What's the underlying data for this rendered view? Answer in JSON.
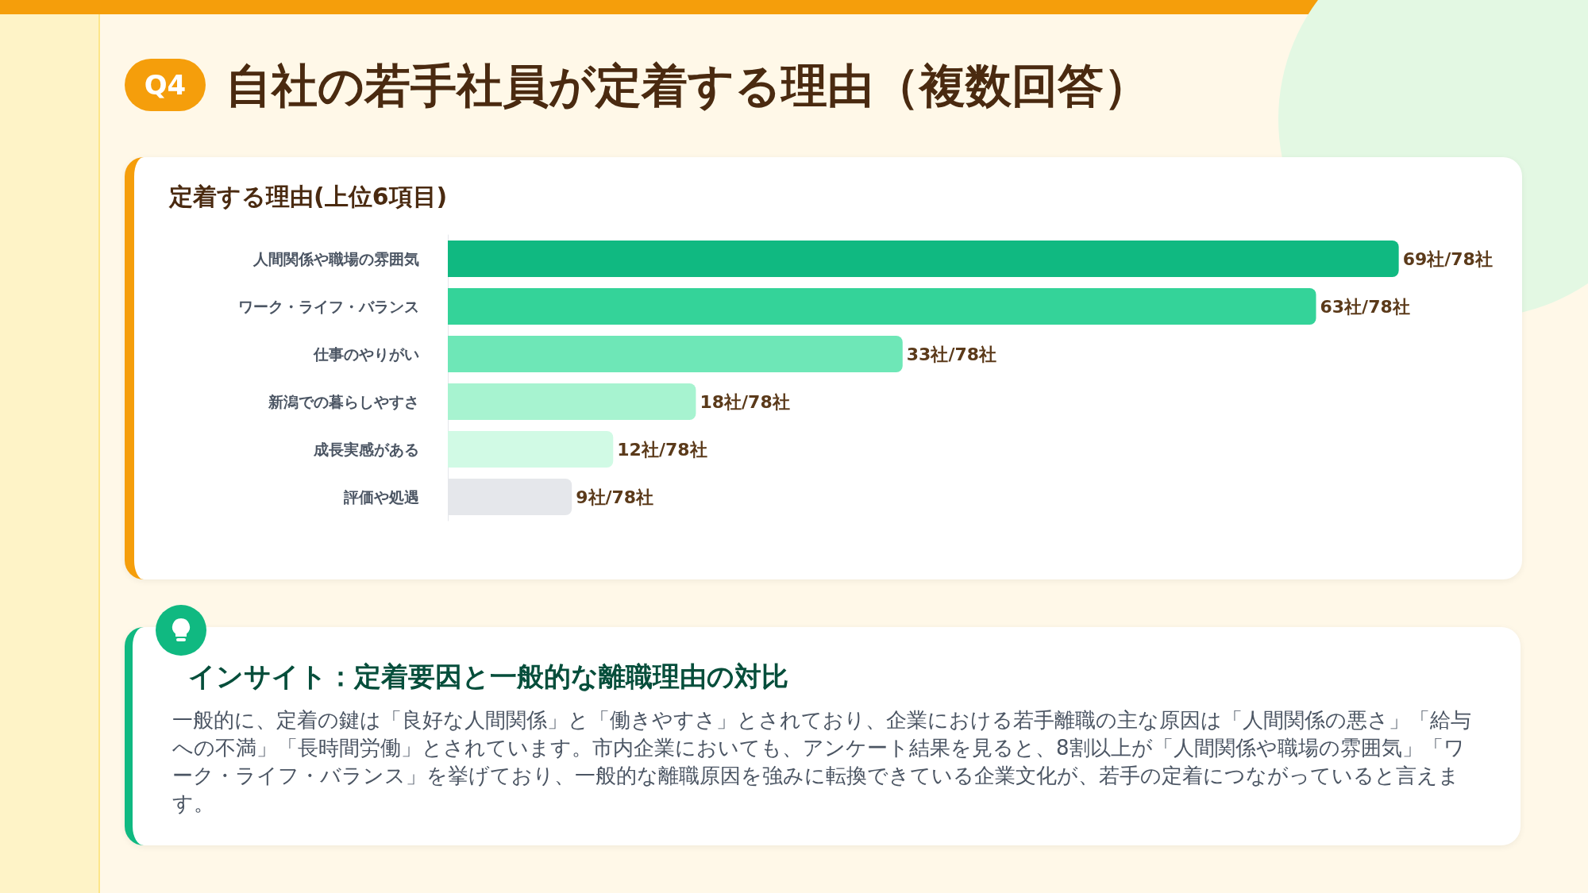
{
  "chart_data": {
    "type": "bar",
    "orientation": "horizontal",
    "title": "自社の若手社員が定着する理由（複数回答）",
    "subtitle": "定着する理由(上位6項目)",
    "categories": [
      "人間関係や職場の雰囲気",
      "ワーク・ライフ・バランス",
      "仕事のやりがい",
      "新潟での暮らしやすさ",
      "成長実感がある",
      "評価や処遇"
    ],
    "values": [
      69,
      63,
      33,
      18,
      12,
      9
    ],
    "colors": [
      "#10b981",
      "#34d399",
      "#6ee7b7",
      "#a7f3d0",
      "#d1fae5",
      "#e5e7eb"
    ],
    "value_labels": [
      "69社/78社",
      "63社/78社",
      "33社/78社",
      "18社/78社",
      "12社/78社",
      "9社/78社"
    ],
    "annotations": [
      "Q4",
      "インサイト：定着要因と一般的な離職理由の対比",
      "一般的に、定着の鍵は「良好な人間関係」と「働きやすさ」とされており、企業における若手離職の主な原因は「人間関係の悪さ」「給与への不満」「長時間労働」とされています。市内企業においても、アンケート結果を見ると、8割以上が「人間関係や職場の雰囲気」「ワーク・ライフ・バランス」を挙げており、一般的な離職原因を強みに転換できている企業文化が、若手の定着につながっていると言えます。"
    ]
  }
}
